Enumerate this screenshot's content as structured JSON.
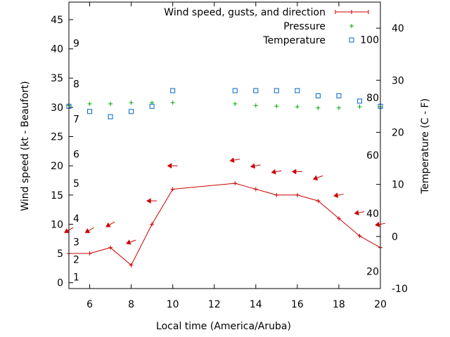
{
  "chart_data": {
    "type": "line",
    "xlabel": "Local time (America/Aruba)",
    "ylabel_left": "Wind speed (kt - Beaufort)",
    "ylabel_right": "Temperature (C - F)",
    "xlim": [
      5,
      20
    ],
    "ylim_left": [
      -1,
      48
    ],
    "ylim_right": [
      -10,
      45
    ],
    "x_ticks": [
      6,
      8,
      10,
      12,
      14,
      16,
      18,
      20
    ],
    "y_ticks_left": [
      0,
      5,
      10,
      15,
      20,
      25,
      30,
      35,
      40,
      45
    ],
    "y_ticks_right": [
      -10,
      0,
      10,
      20,
      30,
      40
    ],
    "beaufort_labels": [
      {
        "label": "1",
        "kt": 1
      },
      {
        "label": "2",
        "kt": 4
      },
      {
        "label": "3",
        "kt": 7
      },
      {
        "label": "4",
        "kt": 11
      },
      {
        "label": "5",
        "kt": 17
      },
      {
        "label": "6",
        "kt": 22
      },
      {
        "label": "7",
        "kt": 28
      },
      {
        "label": "8",
        "kt": 34
      },
      {
        "label": "9",
        "kt": 41
      }
    ],
    "fahrenheit_labels": [
      {
        "label": "20",
        "c": -6.7
      },
      {
        "label": "40",
        "c": 4.4
      },
      {
        "label": "60",
        "c": 15.6
      },
      {
        "label": "80",
        "c": 26.7
      },
      {
        "label": "100",
        "c": 37.8
      }
    ],
    "legend_position": "top-right",
    "series": [
      {
        "name": "Wind speed, gusts, and direction",
        "color": "#cc0000",
        "x": [
          5,
          6,
          7,
          8,
          9,
          10,
          13,
          14,
          15,
          16,
          17,
          18,
          19,
          20
        ],
        "y": [
          5,
          5,
          6,
          3,
          10,
          16,
          17,
          16,
          15,
          15,
          14,
          11,
          8,
          6
        ]
      },
      {
        "name": "Pressure",
        "color": "#00aa00",
        "marker": "plus",
        "x": [
          5,
          6,
          7,
          8,
          9,
          10,
          13,
          14,
          15,
          16,
          17,
          18,
          19,
          20
        ],
        "y": [
          30.3,
          30.6,
          30.6,
          30.8,
          30.8,
          30.8,
          30.6,
          30.3,
          30.2,
          30.1,
          29.9,
          29.9,
          30.1,
          30.1
        ]
      },
      {
        "name": "Temperature",
        "color": "#0066cc",
        "marker": "square",
        "axis": "right",
        "x": [
          5,
          6,
          7,
          8,
          9,
          10,
          13,
          14,
          15,
          16,
          17,
          18,
          19,
          20
        ],
        "y": [
          25,
          24,
          23,
          24,
          25,
          28,
          28,
          28,
          28,
          28,
          27,
          27,
          26,
          25
        ]
      }
    ],
    "wind_direction_arrows": [
      {
        "x": 5,
        "kt": 9,
        "dir_deg": 60
      },
      {
        "x": 6,
        "kt": 9,
        "dir_deg": 60
      },
      {
        "x": 7,
        "kt": 10,
        "dir_deg": 60
      },
      {
        "x": 8,
        "kt": 7,
        "dir_deg": 70
      },
      {
        "x": 9,
        "kt": 14,
        "dir_deg": 90
      },
      {
        "x": 10,
        "kt": 20,
        "dir_deg": 90
      },
      {
        "x": 13,
        "kt": 21,
        "dir_deg": 80
      },
      {
        "x": 14,
        "kt": 20,
        "dir_deg": 80
      },
      {
        "x": 15,
        "kt": 19,
        "dir_deg": 80
      },
      {
        "x": 16,
        "kt": 19,
        "dir_deg": 90
      },
      {
        "x": 17,
        "kt": 18,
        "dir_deg": 70
      },
      {
        "x": 18,
        "kt": 15,
        "dir_deg": 80
      },
      {
        "x": 19,
        "kt": 12,
        "dir_deg": 80
      },
      {
        "x": 20,
        "kt": 10,
        "dir_deg": 80
      }
    ]
  }
}
